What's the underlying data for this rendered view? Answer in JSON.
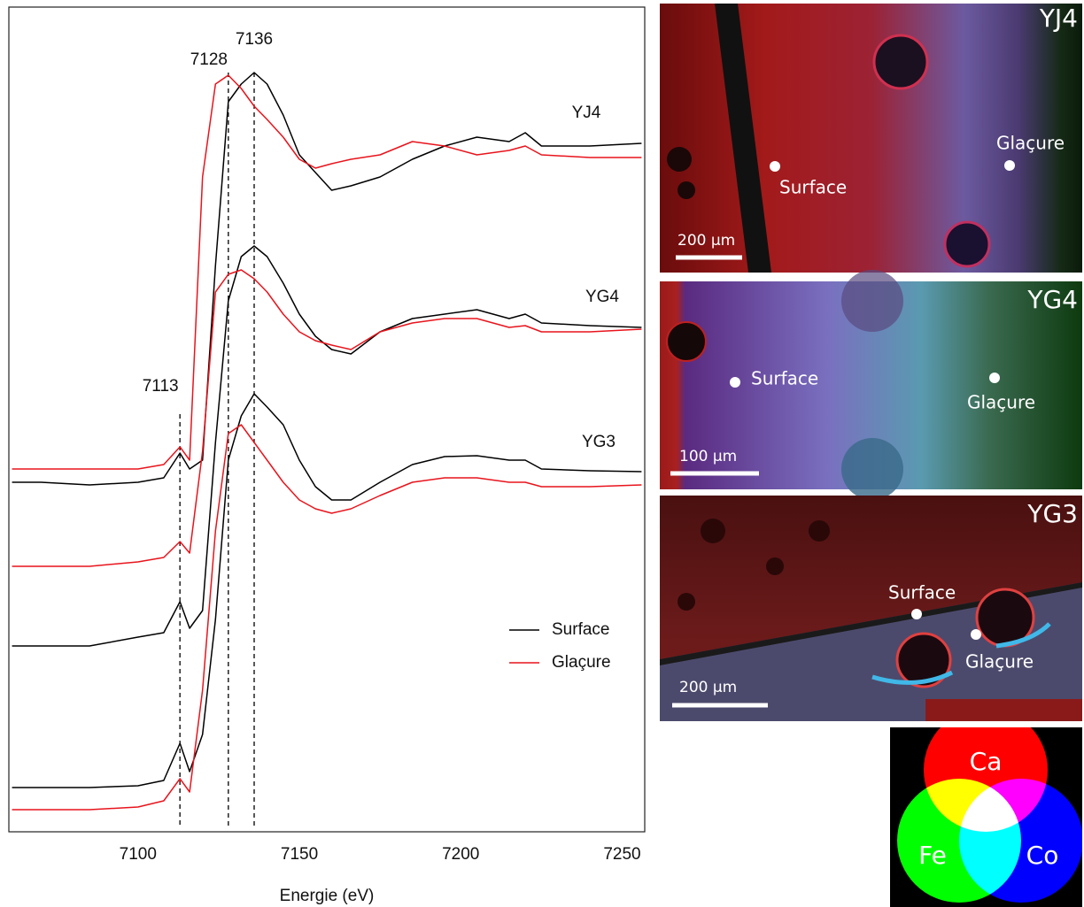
{
  "chart_data": {
    "type": "line",
    "xlabel": "Energie (eV)",
    "xlim": [
      7060,
      7257
    ],
    "xticks": [
      7100,
      7150,
      7200,
      7250
    ],
    "ylim": [
      0,
      93
    ],
    "reference_lines": [
      7113,
      7128,
      7136
    ],
    "legend": "lower right",
    "x": [
      7061,
      7070,
      7085,
      7100,
      7108,
      7113,
      7116,
      7120,
      7124,
      7128,
      7132,
      7136,
      7140,
      7145,
      7150,
      7155,
      7160,
      7166,
      7175,
      7185,
      7195,
      7205,
      7215,
      7220,
      7225,
      7240,
      7256
    ],
    "series": [
      {
        "name": "Surface",
        "sample": "YJ4",
        "color": "#000000",
        "values": [
          39.5,
          39.5,
          39.2,
          39.5,
          40,
          42.8,
          41,
          42,
          64,
          82.5,
          84.5,
          85.8,
          84.5,
          81,
          76.5,
          74.5,
          72.5,
          73,
          74,
          76,
          77.5,
          78.5,
          78,
          79,
          77.5,
          77.5,
          77.8
        ]
      },
      {
        "name": "Glaçure",
        "sample": "YJ4",
        "color": "#e8141c",
        "values": [
          41,
          41,
          41,
          41,
          41.5,
          43.5,
          42,
          74,
          84.5,
          85.5,
          84,
          82,
          80.5,
          78.5,
          76,
          75,
          75.5,
          76,
          76.5,
          78,
          77.5,
          76.5,
          77,
          77.5,
          76.5,
          76.2,
          76.2
        ]
      },
      {
        "name": "Surface",
        "sample": "YG4",
        "color": "#000000",
        "values": [
          21,
          21,
          21,
          22,
          22.5,
          26,
          23,
          25,
          44,
          60,
          65,
          66.2,
          65,
          62,
          58.5,
          56,
          54.5,
          54,
          56.5,
          58,
          58.5,
          59,
          58,
          58.5,
          57.5,
          57.2,
          57
        ]
      },
      {
        "name": "Glaçure",
        "sample": "YG4",
        "color": "#e8141c",
        "values": [
          30,
          30,
          30,
          30.5,
          31,
          32.8,
          31.5,
          43,
          61,
          63,
          63.5,
          62.5,
          61,
          58.5,
          56.5,
          55.5,
          55,
          54.5,
          56.5,
          57.5,
          58,
          58,
          57,
          57.2,
          56.5,
          56.5,
          56.8
        ]
      },
      {
        "name": "Surface",
        "sample": "YG3",
        "color": "#000000",
        "values": [
          5,
          5,
          5,
          5.2,
          5.8,
          10,
          6.8,
          11,
          24,
          42,
          47,
          49.5,
          48,
          46,
          42,
          39,
          37.5,
          37.5,
          39.5,
          41.5,
          42.4,
          42.5,
          42,
          42,
          41,
          40.8,
          40.7
        ]
      },
      {
        "name": "Glaçure",
        "sample": "YG3",
        "color": "#e8141c",
        "values": [
          2.5,
          2.5,
          2.5,
          2.8,
          3.5,
          6,
          4.5,
          16,
          34,
          45,
          46,
          44,
          42,
          39.5,
          37.5,
          36.5,
          36,
          36.5,
          38,
          39.5,
          40,
          40,
          39.5,
          39.5,
          39,
          39,
          39.2
        ]
      }
    ]
  },
  "images": [
    {
      "title": "YJ4",
      "points": [
        "Surface",
        "Glaçure"
      ],
      "scale_bar": "200 µm"
    },
    {
      "title": "YG4",
      "points": [
        "Surface",
        "Glaçure"
      ],
      "scale_bar": "100 µm"
    },
    {
      "title": "YG3",
      "points": [
        "Surface",
        "Glaçure"
      ],
      "scale_bar": "200 µm"
    }
  ],
  "color_key": [
    "Ca",
    "Fe",
    "Co"
  ]
}
